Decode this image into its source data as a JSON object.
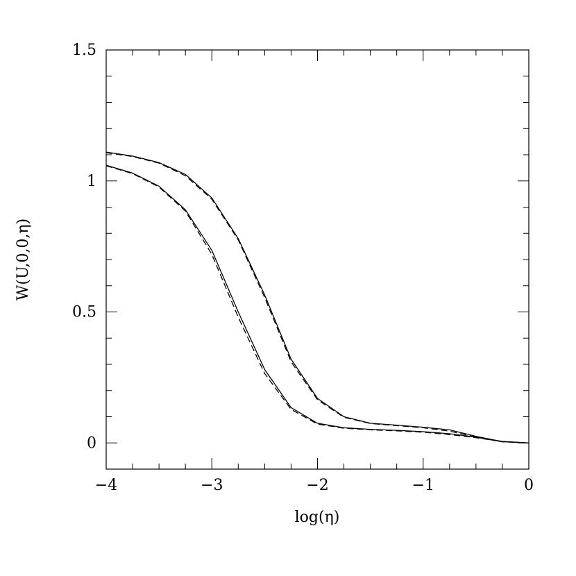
{
  "chart_data": {
    "type": "line",
    "xlabel": "log(η)",
    "ylabel": "W(U,0,0,η)",
    "xlim": [
      -4,
      0
    ],
    "ylim": [
      -0.1,
      1.5
    ],
    "xticks": [
      -4,
      -3,
      -2,
      -1,
      0
    ],
    "xtick_labels": [
      "−4",
      "−3",
      "−2",
      "−1",
      "0"
    ],
    "yticks": [
      0,
      0.5,
      1,
      1.5
    ],
    "ytick_labels": [
      "0",
      "0.5",
      "1",
      "1.5"
    ],
    "x_minor_step": 0.25,
    "y_minor_step": 0.1,
    "grid": false,
    "series": [
      {
        "style": "solid",
        "x": [
          -4,
          -3.75,
          -3.5,
          -3.25,
          -3,
          -2.75,
          -2.5,
          -2.25,
          -2,
          -1.75,
          -1.5,
          -1.25,
          -1,
          -0.75,
          -0.5,
          -0.25,
          0
        ],
        "y": [
          1.11,
          1.095,
          1.07,
          1.025,
          0.935,
          0.78,
          0.565,
          0.32,
          0.17,
          0.1,
          0.075,
          0.068,
          0.06,
          0.05,
          0.025,
          0.005,
          0
        ]
      },
      {
        "style": "dashed",
        "x": [
          -4,
          -3.75,
          -3.5,
          -3.25,
          -3,
          -2.75,
          -2.5,
          -2.25,
          -2,
          -1.75,
          -1.5,
          -1.25,
          -1,
          -0.75,
          -0.5,
          -0.25,
          0
        ],
        "y": [
          1.108,
          1.093,
          1.068,
          1.02,
          0.93,
          0.775,
          0.555,
          0.31,
          0.165,
          0.098,
          0.074,
          0.066,
          0.058,
          0.045,
          0.022,
          0.004,
          0
        ]
      },
      {
        "style": "solid",
        "x": [
          -4,
          -3.75,
          -3.5,
          -3.25,
          -3,
          -2.75,
          -2.5,
          -2.25,
          -2,
          -1.75,
          -1.5,
          -1.25,
          -1,
          -0.75,
          -0.5,
          -0.25,
          0
        ],
        "y": [
          1.06,
          1.03,
          0.98,
          0.89,
          0.735,
          0.5,
          0.28,
          0.135,
          0.075,
          0.058,
          0.052,
          0.048,
          0.043,
          0.035,
          0.022,
          0.006,
          0
        ]
      },
      {
        "style": "dashed",
        "x": [
          -4,
          -3.75,
          -3.5,
          -3.25,
          -3,
          -2.75,
          -2.5,
          -2.25,
          -2,
          -1.75,
          -1.5,
          -1.25,
          -1,
          -0.75,
          -0.5,
          -0.25,
          0
        ],
        "y": [
          1.058,
          1.028,
          0.977,
          0.885,
          0.72,
          0.48,
          0.265,
          0.128,
          0.072,
          0.056,
          0.05,
          0.046,
          0.041,
          0.032,
          0.02,
          0.005,
          0
        ]
      }
    ]
  }
}
